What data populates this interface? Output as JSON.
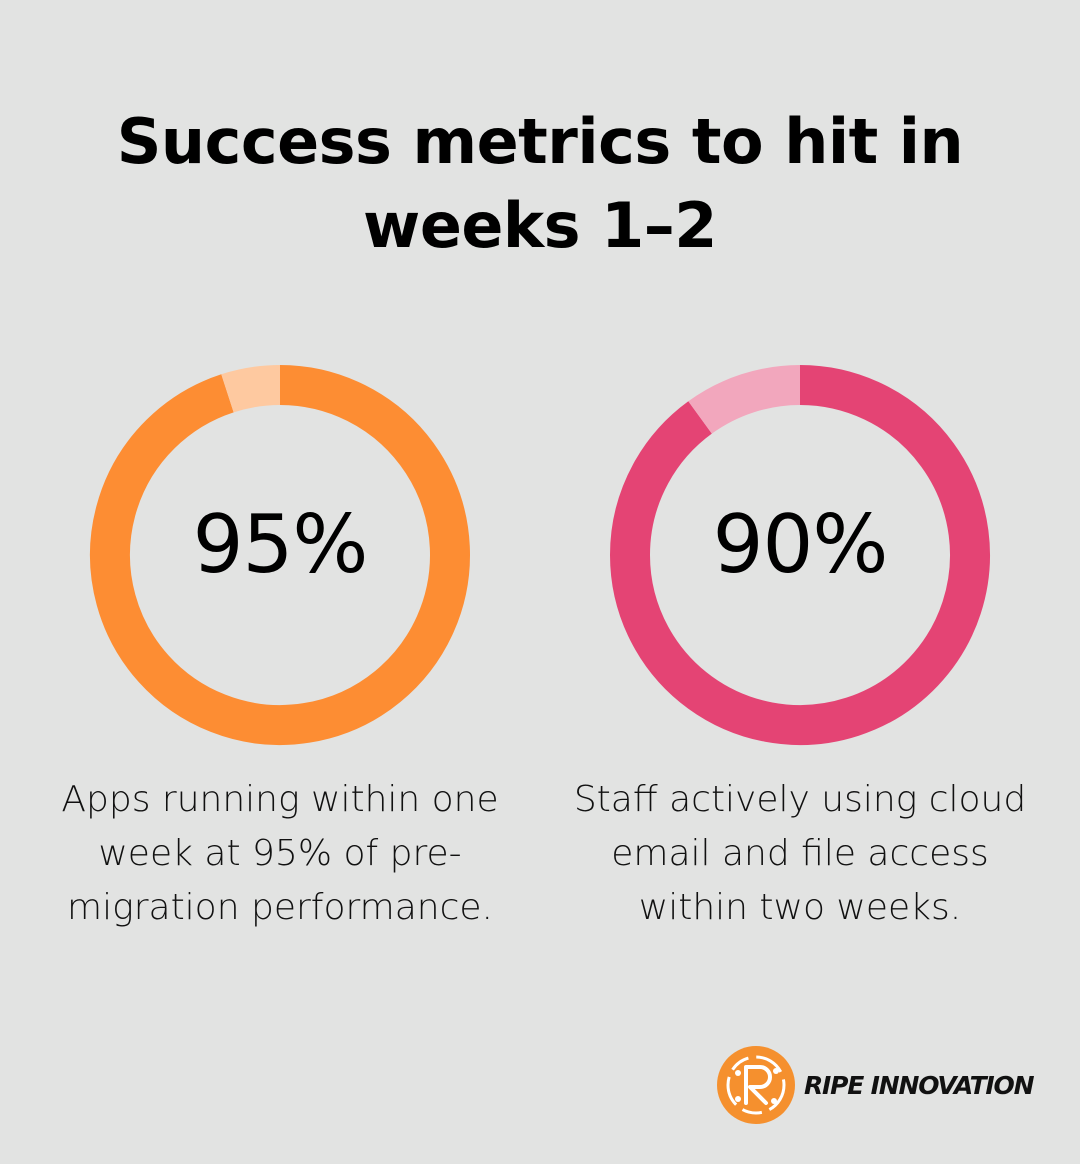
{
  "title": {
    "line1": "Success metrics to hit in",
    "line2": "weeks 1–2"
  },
  "chart_data": [
    {
      "type": "pie",
      "label": "95%",
      "values": [
        95,
        5
      ],
      "colors": [
        "#fd8d33",
        "#fec9a0"
      ],
      "caption": "Apps running within one week at 95% of pre-migration performance.",
      "caption_lines": [
        "Apps running within one",
        "week at 95% of pre-",
        "migration performance."
      ]
    },
    {
      "type": "pie",
      "label": "90%",
      "values": [
        90,
        10
      ],
      "colors": [
        "#e44474",
        "#f2a7bd"
      ],
      "caption": "Staff actively using cloud email and file access within two weeks.",
      "caption_lines": [
        "Staff actively using cloud",
        "email and file access",
        "within two weeks."
      ]
    }
  ],
  "brand": {
    "name": "RIPE INNOVATION",
    "accent": "#f5902e",
    "icon": "ripe-innovation-logo-icon"
  }
}
